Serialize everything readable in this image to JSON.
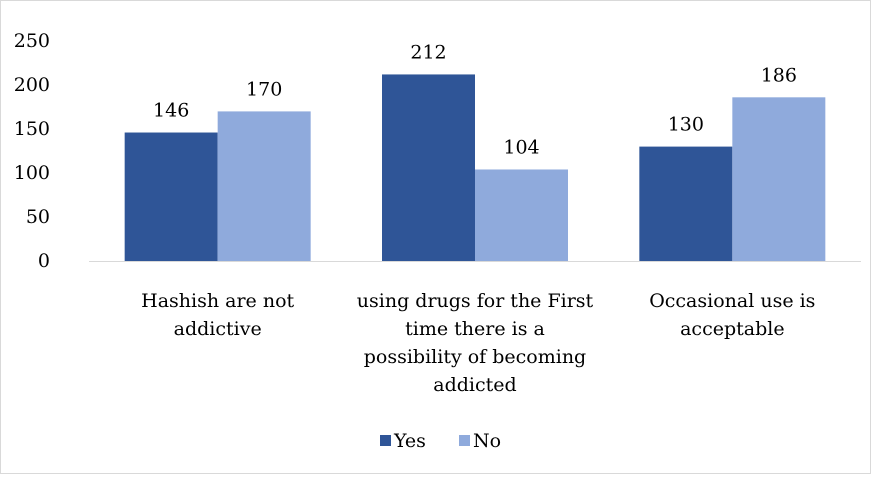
{
  "chart_data": {
    "type": "bar",
    "categories": [
      [
        "Hashish are not",
        "addictive"
      ],
      [
        "using drugs for the First",
        "time there is a",
        "possibility of becoming",
        "addicted"
      ],
      [
        "Occasional use is",
        "acceptable"
      ]
    ],
    "series": [
      {
        "name": "Yes",
        "values": [
          146,
          212,
          130
        ],
        "color": "#2f5597"
      },
      {
        "name": "No",
        "values": [
          170,
          104,
          186
        ],
        "color": "#8faadc"
      }
    ],
    "ylim": [
      0,
      250
    ],
    "yticks": [
      0,
      50,
      100,
      150,
      200,
      250
    ],
    "gridlines": false,
    "legend_position": "bottom",
    "title": "",
    "xlabel": "",
    "ylabel": ""
  }
}
